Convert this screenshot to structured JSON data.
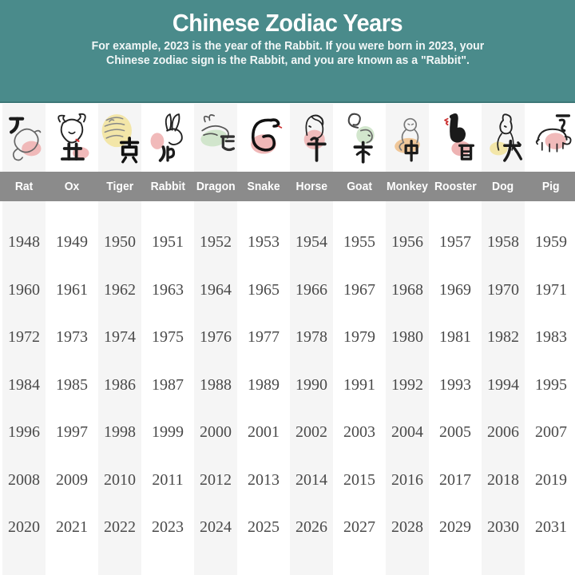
{
  "page": {
    "title": "Chinese Zodiac Years",
    "subtitle_line1": "For example, 2023 is the year of the Rabbit. If you were born in 2023, your",
    "subtitle_line2": "Chinese zodiac sign is the Rabbit, and you are known as a \"Rabbit\"."
  },
  "colors": {
    "header_bg": "#4a8b8b",
    "header_border": "#3d7777",
    "name_bar_bg": "#8b8b8b",
    "column_stripe": "#f5f5f5",
    "year_text": "#4a4a4a",
    "ink": "#1b1b1b",
    "accent_red": "#cc3333"
  },
  "animals": [
    {
      "name": "Rat",
      "hanzi": "子",
      "blob_color": "#efb3b3"
    },
    {
      "name": "Ox",
      "hanzi": "丑",
      "blob_color": "#efb3b3"
    },
    {
      "name": "Tiger",
      "hanzi": "寅",
      "blob_color": "#f3e4a0"
    },
    {
      "name": "Rabbit",
      "hanzi": "卯",
      "blob_color": "#efb3b3"
    },
    {
      "name": "Dragon",
      "hanzi": "辰",
      "blob_color": "#cde3c8"
    },
    {
      "name": "Snake",
      "hanzi": "巳",
      "blob_color": "#eeb0b0"
    },
    {
      "name": "Horse",
      "hanzi": "午",
      "blob_color": "#f0b6b6"
    },
    {
      "name": "Goat",
      "hanzi": "未",
      "blob_color": "#cde3c8"
    },
    {
      "name": "Monkey",
      "hanzi": "申",
      "blob_color": "#f0c28f"
    },
    {
      "name": "Rooster",
      "hanzi": "酉",
      "blob_color": "#ecabab"
    },
    {
      "name": "Dog",
      "hanzi": "戌",
      "blob_color": "#f3e4a0"
    },
    {
      "name": "Pig",
      "hanzi": "亥",
      "blob_color": "#efb3b3"
    }
  ],
  "chart_data": {
    "type": "table",
    "title": "Chinese Zodiac Years",
    "columns": [
      "Rat",
      "Ox",
      "Tiger",
      "Rabbit",
      "Dragon",
      "Snake",
      "Horse",
      "Goat",
      "Monkey",
      "Rooster",
      "Dog",
      "Pig"
    ],
    "rows": [
      [
        1948,
        1949,
        1950,
        1951,
        1952,
        1953,
        1954,
        1955,
        1956,
        1957,
        1958,
        1959
      ],
      [
        1960,
        1961,
        1962,
        1963,
        1964,
        1965,
        1966,
        1967,
        1968,
        1969,
        1970,
        1971
      ],
      [
        1972,
        1973,
        1974,
        1975,
        1976,
        1977,
        1978,
        1979,
        1980,
        1981,
        1982,
        1983
      ],
      [
        1984,
        1985,
        1986,
        1987,
        1988,
        1989,
        1990,
        1991,
        1992,
        1993,
        1994,
        1995
      ],
      [
        1996,
        1997,
        1998,
        1999,
        2000,
        2001,
        2002,
        2003,
        2004,
        2005,
        2006,
        2007
      ],
      [
        2008,
        2009,
        2010,
        2011,
        2012,
        2013,
        2014,
        2015,
        2016,
        2017,
        2018,
        2019
      ],
      [
        2020,
        2021,
        2022,
        2023,
        2024,
        2025,
        2026,
        2027,
        2028,
        2029,
        2030,
        2031
      ]
    ]
  }
}
